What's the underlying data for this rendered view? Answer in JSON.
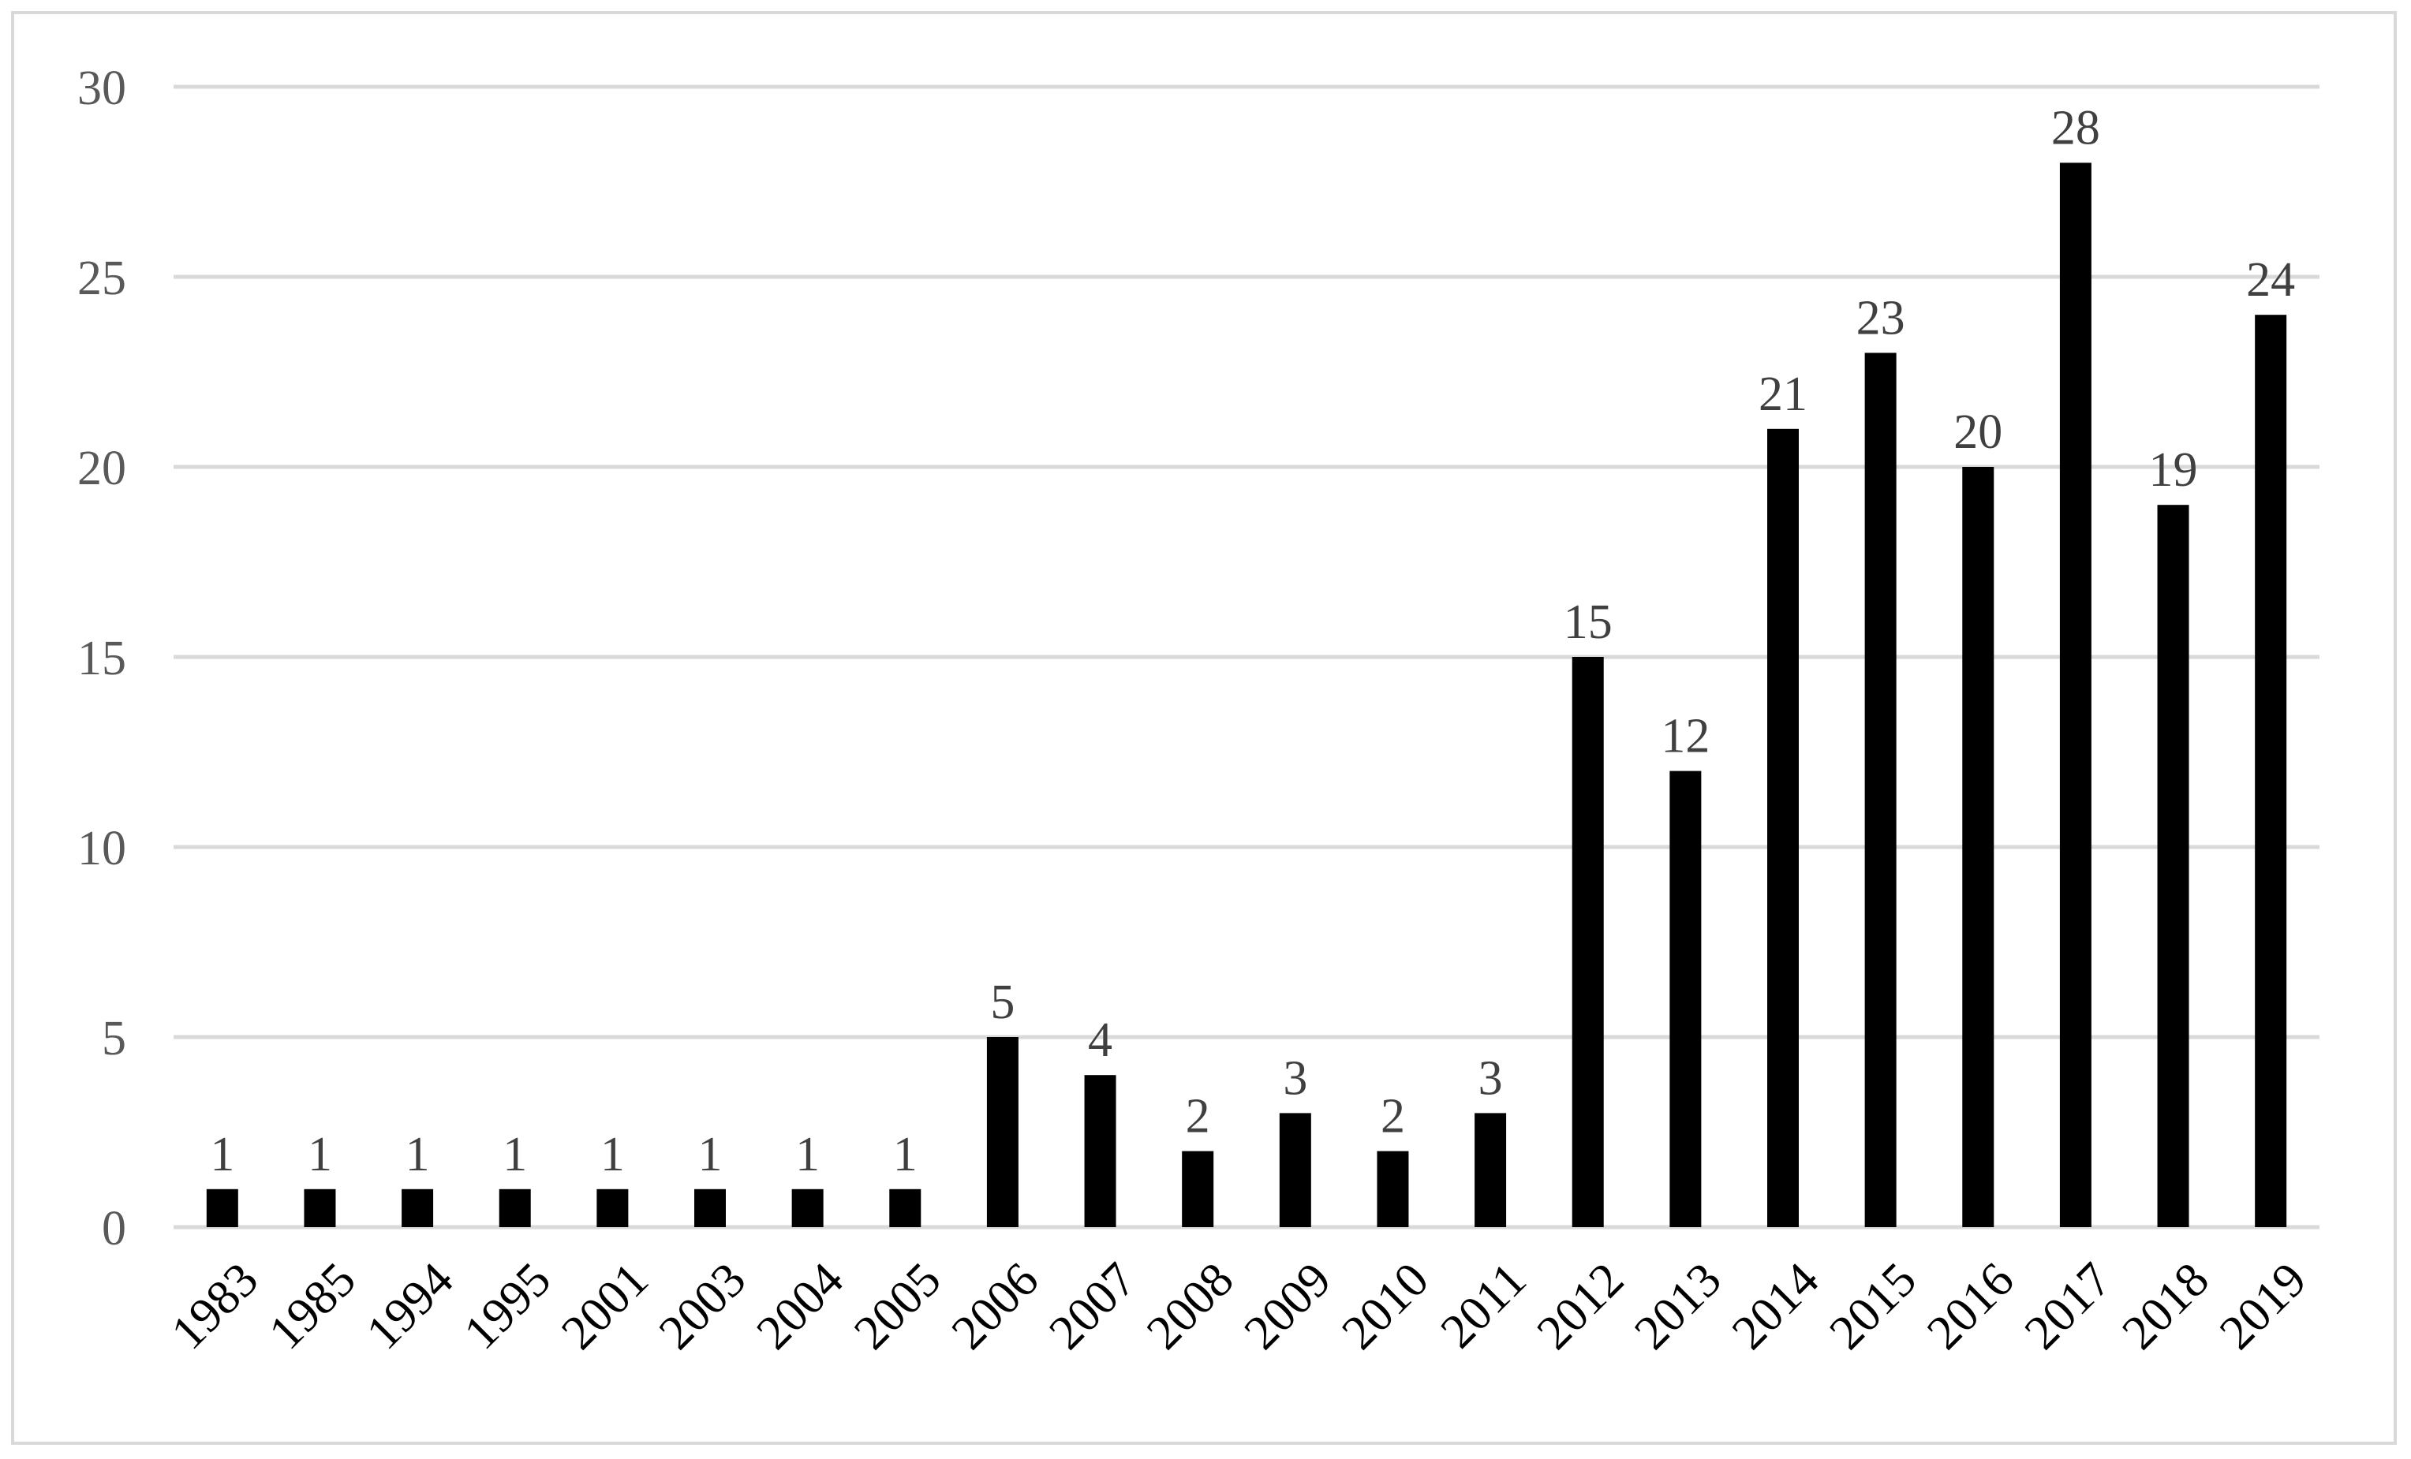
{
  "chart_data": {
    "type": "bar",
    "title": "",
    "xlabel": "",
    "ylabel": "",
    "categories": [
      "1983",
      "1985",
      "1994",
      "1995",
      "2001",
      "2003",
      "2004",
      "2005",
      "2006",
      "2007",
      "2008",
      "2009",
      "2010",
      "2011",
      "2012",
      "2013",
      "2014",
      "2015",
      "2016",
      "2017",
      "2018",
      "2019"
    ],
    "values": [
      1,
      1,
      1,
      1,
      1,
      1,
      1,
      1,
      5,
      4,
      2,
      3,
      2,
      3,
      15,
      12,
      21,
      23,
      20,
      28,
      19,
      24
    ],
    "ylim": [
      0,
      30
    ],
    "yticks": [
      0,
      5,
      10,
      15,
      20,
      25,
      30
    ],
    "grid": true,
    "legend": "none",
    "data_labels": true,
    "colors": {
      "bar": "#000000",
      "grid": "#d9d9d9",
      "frame": "#d9d9d9",
      "tick_text": "#595959",
      "label_text": "#404040"
    }
  }
}
